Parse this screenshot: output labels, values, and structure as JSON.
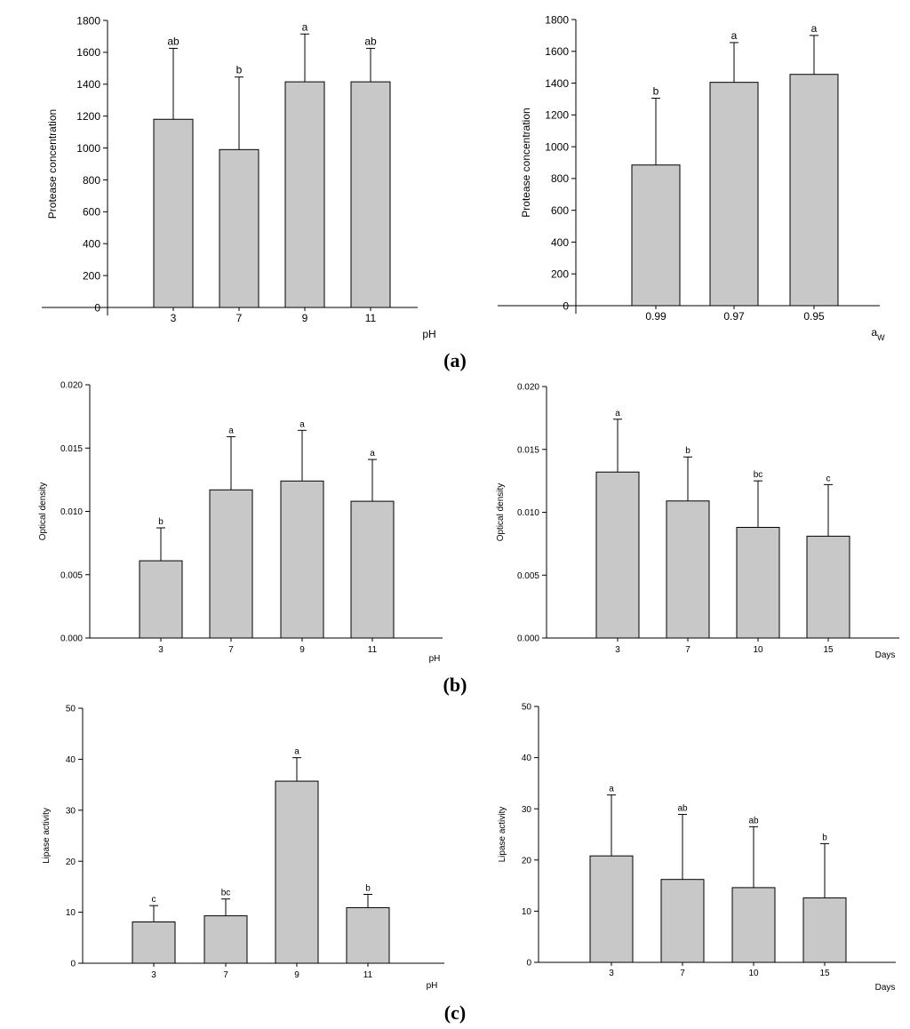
{
  "panel_labels": {
    "a": "(a)",
    "b": "(b)",
    "c": "(c)"
  },
  "colors": {
    "bar_fill": "#c8c8c8",
    "stroke": "#000000",
    "background": "#ffffff"
  },
  "chart_data": [
    {
      "id": "a-ph",
      "type": "bar",
      "title": "",
      "ylabel": "Protease concentration",
      "xlabel": "pH",
      "ylim": [
        0,
        1800
      ],
      "yticks": [
        0,
        200,
        400,
        600,
        800,
        1000,
        1200,
        1400,
        1600,
        1800
      ],
      "ytick_labels": [
        "0",
        "200",
        "400",
        "600",
        "800",
        "1000",
        "1200",
        "1400",
        "1600",
        "1800"
      ],
      "categories": [
        "3",
        "7",
        "9",
        "11"
      ],
      "values": [
        1180,
        990,
        1415,
        1415
      ],
      "error_upper": [
        1625,
        1445,
        1715,
        1625
      ],
      "letters": [
        "ab",
        "b",
        "a",
        "ab"
      ],
      "grid": false
    },
    {
      "id": "a-aw",
      "type": "bar",
      "title": "",
      "ylabel": "Protease concentration",
      "xlabel": "a",
      "xlabel_sub": "W",
      "ylim": [
        0,
        1800
      ],
      "yticks": [
        0,
        200,
        400,
        600,
        800,
        1000,
        1200,
        1400,
        1600,
        1800
      ],
      "ytick_labels": [
        "0",
        "200",
        "400",
        "600",
        "800",
        "1000",
        "1200",
        "1400",
        "1600",
        "1800"
      ],
      "categories": [
        "0.99",
        "0.97",
        "0.95"
      ],
      "values": [
        885,
        1405,
        1455
      ],
      "error_upper": [
        1305,
        1655,
        1700
      ],
      "letters": [
        "b",
        "a",
        "a"
      ],
      "grid": false
    },
    {
      "id": "b-ph",
      "type": "bar",
      "title": "",
      "ylabel": "Optical density",
      "xlabel": "pH",
      "ylim": [
        0,
        0.02
      ],
      "yticks": [
        0,
        0.005,
        0.01,
        0.015,
        0.02
      ],
      "ytick_labels": [
        "0.000",
        "0.005",
        "0.010",
        "0.015",
        "0.020"
      ],
      "categories": [
        "3",
        "7",
        "9",
        "11"
      ],
      "values": [
        0.0061,
        0.0117,
        0.0124,
        0.0108
      ],
      "error_upper": [
        0.0087,
        0.0159,
        0.0164,
        0.0141
      ],
      "letters": [
        "b",
        "a",
        "a",
        "a"
      ],
      "grid": false
    },
    {
      "id": "b-days",
      "type": "bar",
      "title": "",
      "ylabel": "Optical density",
      "xlabel": "Days",
      "ylim": [
        0,
        0.02
      ],
      "yticks": [
        0,
        0.005,
        0.01,
        0.015,
        0.02
      ],
      "ytick_labels": [
        "0.000",
        "0.005",
        "0.010",
        "0.015",
        "0.020"
      ],
      "categories": [
        "3",
        "7",
        "10",
        "15"
      ],
      "values": [
        0.0132,
        0.0109,
        0.0088,
        0.0081
      ],
      "error_upper": [
        0.0174,
        0.0144,
        0.0125,
        0.0122
      ],
      "letters": [
        "a",
        "b",
        "bc",
        "c"
      ],
      "grid": false
    },
    {
      "id": "c-ph",
      "type": "bar",
      "title": "",
      "ylabel": "Lipase activity",
      "xlabel": "pH",
      "ylim": [
        0,
        50
      ],
      "yticks": [
        0,
        10,
        20,
        30,
        40,
        50
      ],
      "ytick_labels": [
        "0",
        "10",
        "20",
        "30",
        "40",
        "50"
      ],
      "categories": [
        "3",
        "7",
        "9",
        "11"
      ],
      "values": [
        8.1,
        9.3,
        35.7,
        10.9
      ],
      "error_upper": [
        11.3,
        12.6,
        40.3,
        13.5
      ],
      "letters": [
        "c",
        "bc",
        "a",
        "b"
      ],
      "grid": false
    },
    {
      "id": "c-days",
      "type": "bar",
      "title": "",
      "ylabel": "Lipase activity",
      "xlabel": "Days",
      "ylim": [
        0,
        50
      ],
      "yticks": [
        0,
        10,
        20,
        30,
        40,
        50
      ],
      "ytick_labels": [
        "0",
        "10",
        "20",
        "30",
        "40",
        "50"
      ],
      "categories": [
        "3",
        "7",
        "10",
        "15"
      ],
      "values": [
        20.8,
        16.2,
        14.6,
        12.6
      ],
      "error_upper": [
        32.7,
        28.9,
        26.5,
        23.2
      ],
      "letters": [
        "a",
        "ab",
        "ab",
        "b"
      ],
      "grid": false
    }
  ]
}
